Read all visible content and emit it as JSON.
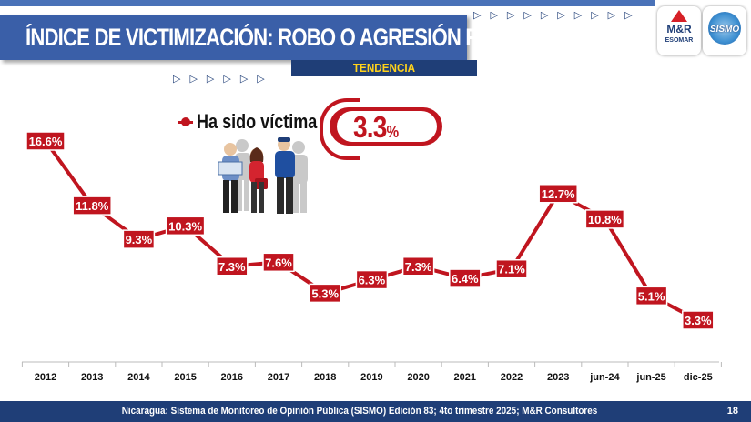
{
  "header": {
    "title": "ÍNDICE DE VICTIMIZACIÓN: ROBO O AGRESIÓN FÍSICA",
    "subtitle": "TENDENCIA",
    "arrows_top": "▷▷▷▷▷▷▷▷▷▷",
    "arrows_mid": "▷▷▷▷▷▷"
  },
  "logos": {
    "mr": {
      "name": "M&R",
      "sub": "ESOMAR"
    },
    "sismo": {
      "name": "SISMO"
    }
  },
  "highlight": {
    "legend_label": "Ha sido víctima",
    "value": "3.3",
    "unit": "%"
  },
  "chart_data": {
    "type": "line",
    "title": "Índice de victimización: robo o agresión física",
    "categories": [
      "2012",
      "2013",
      "2014",
      "2015",
      "2016",
      "2017",
      "2018",
      "2019",
      "2020",
      "2021",
      "2022",
      "2023",
      "jun-24",
      "jun-25",
      "dic-25"
    ],
    "series": [
      {
        "name": "Ha sido víctima",
        "values": [
          16.6,
          11.8,
          9.3,
          10.3,
          7.3,
          7.6,
          5.3,
          6.3,
          7.3,
          6.4,
          7.1,
          12.7,
          10.8,
          5.1,
          3.3
        ]
      }
    ],
    "labels": [
      "16.6%",
      "11.8%",
      "9.3%",
      "10.3%",
      "7.3%",
      "7.6%",
      "5.3%",
      "6.3%",
      "7.3%",
      "6.4%",
      "7.1%",
      "12.7%",
      "10.8%",
      "5.1%",
      "3.3%"
    ],
    "ylim": [
      0,
      20
    ],
    "color": "#c0151f",
    "label_bg": "#c0151f",
    "grid": false
  },
  "footer": {
    "source": "Nicaragua: Sistema de Monitoreo de Opinión Pública (SISMO) Edición 83; 4to trimestre 2025; M&R Consultores",
    "page": "18"
  }
}
